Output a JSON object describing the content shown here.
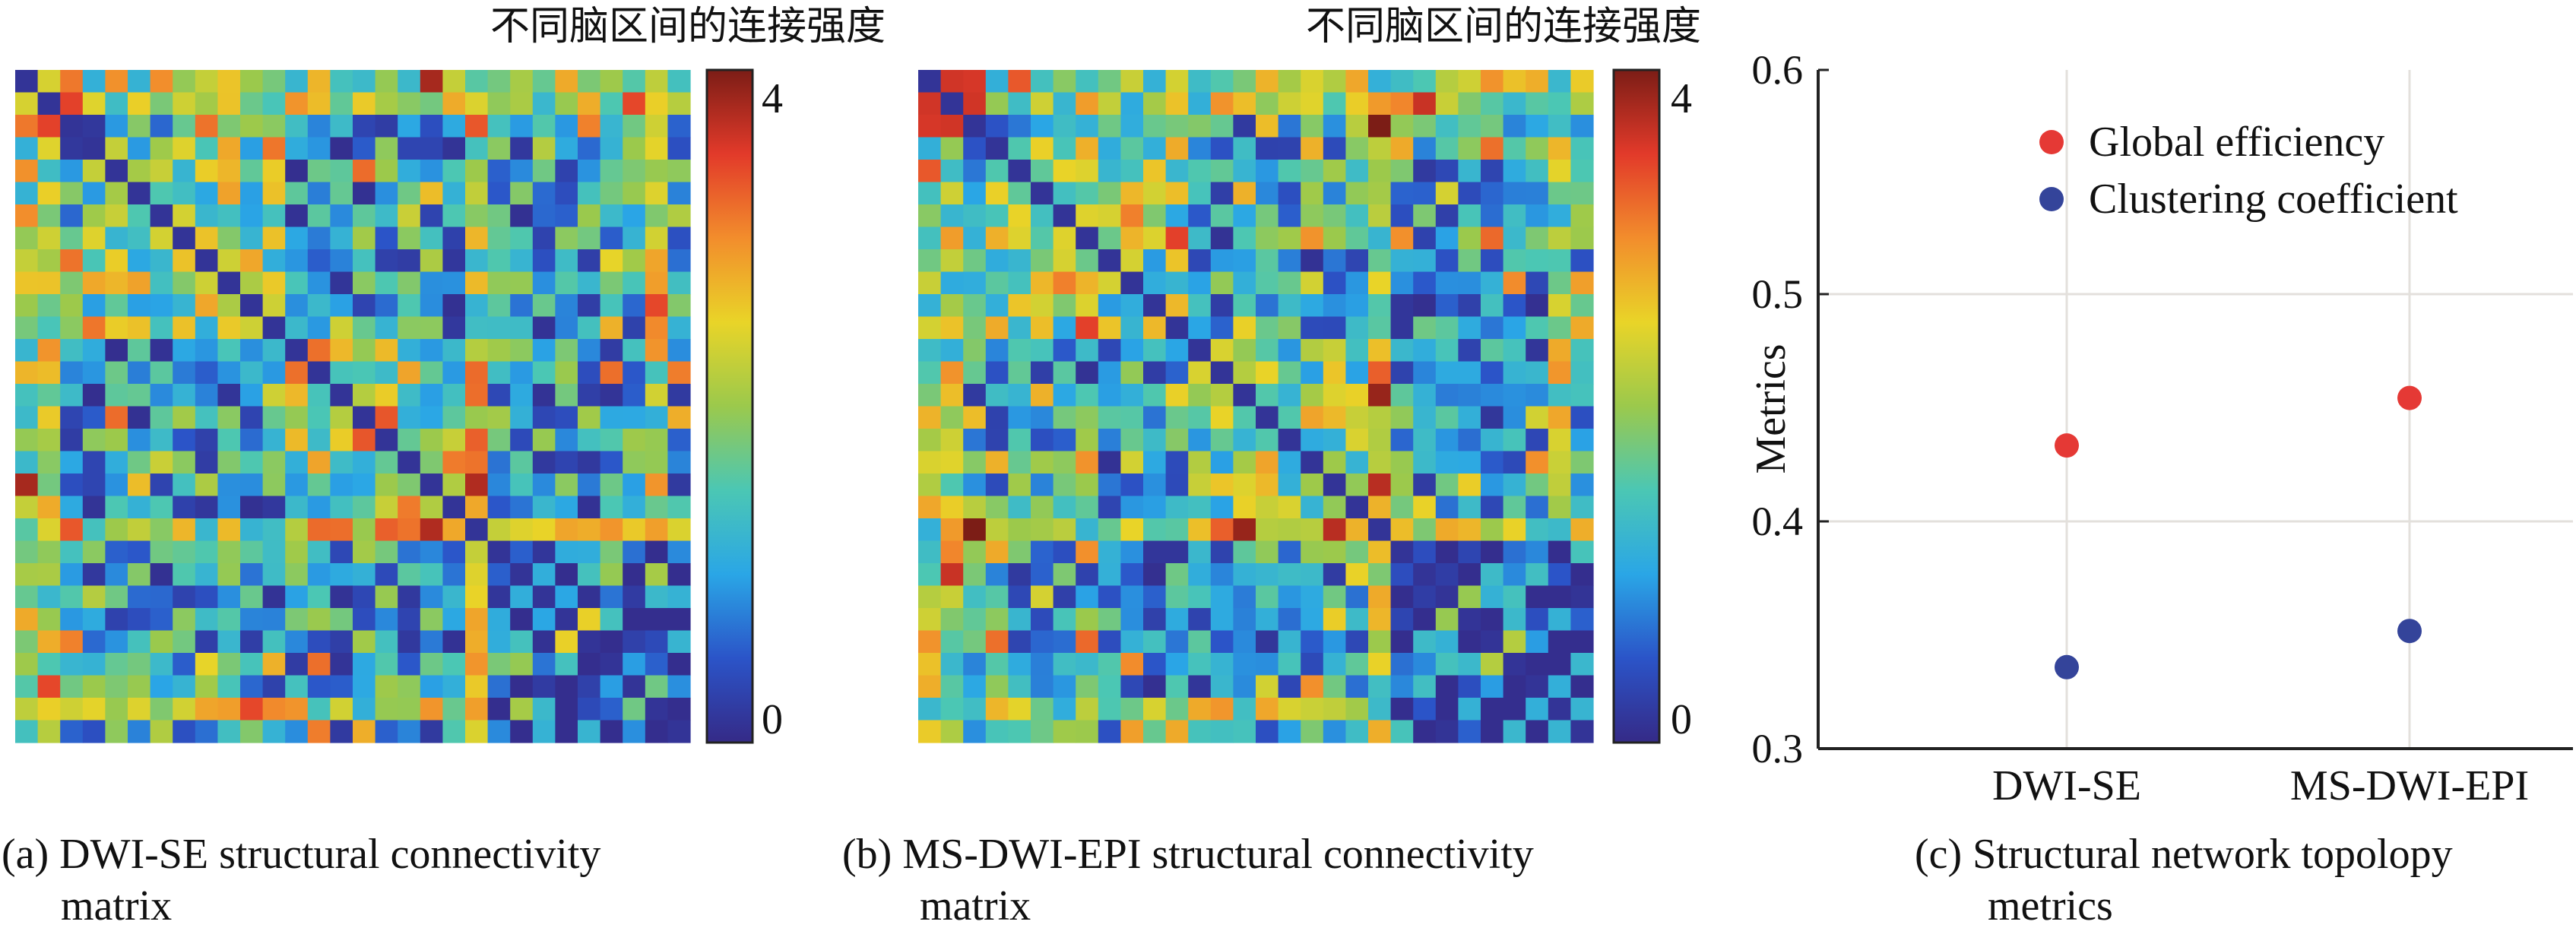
{
  "colors": {
    "colormap": [
      "#352a87",
      "#2b54c8",
      "#2aa6e6",
      "#4bc7b4",
      "#9bc94c",
      "#e9d428",
      "#f28d2c",
      "#e23a2a",
      "#7c1d16"
    ],
    "global_efficiency": "#e53935",
    "clustering_coefficient": "#34449a"
  },
  "panels": [
    {
      "header": "不同脑区间的连接强度",
      "caption_line1": "(a) DWI-SE structural connectivity",
      "caption_line2": "matrix",
      "colorbar_max": "4",
      "colorbar_min": "0"
    },
    {
      "header": "不同脑区间的连接强度",
      "caption_line1": "(b) MS-DWI-EPI structural connectivity",
      "caption_line2": "matrix",
      "colorbar_max": "4",
      "colorbar_min": "0"
    },
    {
      "caption_line1": "(c) Structural network topolopy",
      "caption_line2": "metrics"
    }
  ],
  "chart_data": [
    {
      "type": "heatmap",
      "title": "不同脑区间的连接强度",
      "size": 30,
      "value_range": [
        0,
        4
      ],
      "colorbar_ticks": [
        "4",
        "0"
      ],
      "seed": 7
    },
    {
      "type": "heatmap",
      "title": "不同脑区间的连接强度",
      "size": 30,
      "value_range": [
        0,
        4
      ],
      "colorbar_ticks": [
        "4",
        "0"
      ],
      "seed": 19
    },
    {
      "type": "scatter",
      "categories": [
        "DWI-SE",
        "MS-DWI-EPI"
      ],
      "ylabel": "Metrics",
      "ylim": [
        0.3,
        0.6
      ],
      "yticks": [
        "0.3",
        "0.4",
        "0.5",
        "0.6"
      ],
      "grid": true,
      "legend_position": "top",
      "series": [
        {
          "name": "Global efficiency",
          "values": [
            0.434,
            0.455
          ]
        },
        {
          "name": "Clustering coefficient",
          "values": [
            0.336,
            0.352
          ]
        }
      ]
    }
  ]
}
